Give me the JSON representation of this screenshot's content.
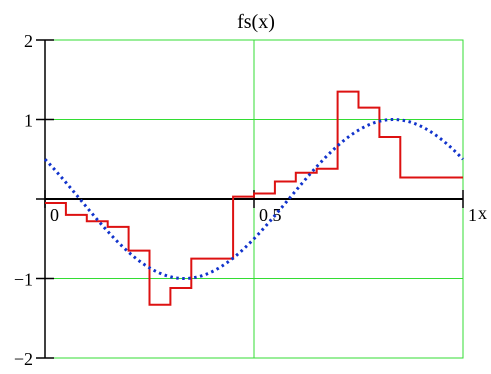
{
  "chart_data": {
    "type": "line",
    "title": "fs(x)",
    "xlabel": "x",
    "ylabel": "",
    "xlim": [
      0,
      1
    ],
    "ylim": [
      -2,
      2
    ],
    "x_ticks": [
      {
        "value": 0,
        "label": "0"
      },
      {
        "value": 0.5,
        "label": "0.5"
      },
      {
        "value": 1,
        "label": "1"
      }
    ],
    "y_ticks": [
      {
        "value": 2,
        "label": "2"
      },
      {
        "value": 1,
        "label": "1"
      },
      {
        "value": 0,
        "label": ""
      },
      {
        "value": -1,
        "label": "−1"
      },
      {
        "value": -2,
        "label": "−2"
      }
    ],
    "grid": true,
    "colors": {
      "grid": "#33dd33",
      "axis": "#000000",
      "step_series": "#dd1111",
      "wave_series": "#1133cc"
    },
    "series": [
      {
        "style": "step",
        "color": "#dd1111",
        "x": [
          0,
          0.05,
          0.1,
          0.15,
          0.2,
          0.25,
          0.3,
          0.35,
          0.4,
          0.45,
          0.5,
          0.55,
          0.6,
          0.65,
          0.7,
          0.75,
          0.8,
          0.85,
          0.9,
          0.95,
          1.0
        ],
        "y": [
          -0.05,
          -0.2,
          -0.28,
          -0.35,
          -0.65,
          -1.33,
          -1.12,
          -0.75,
          -0.75,
          0.03,
          0.07,
          0.22,
          0.33,
          0.38,
          1.35,
          1.15,
          0.78,
          0.27,
          0.27,
          0.27,
          0.27
        ]
      },
      {
        "style": "dotted",
        "color": "#1133cc",
        "function": "sin(2*pi*x + 5*pi/6)",
        "x_range": [
          0,
          1
        ]
      }
    ]
  }
}
